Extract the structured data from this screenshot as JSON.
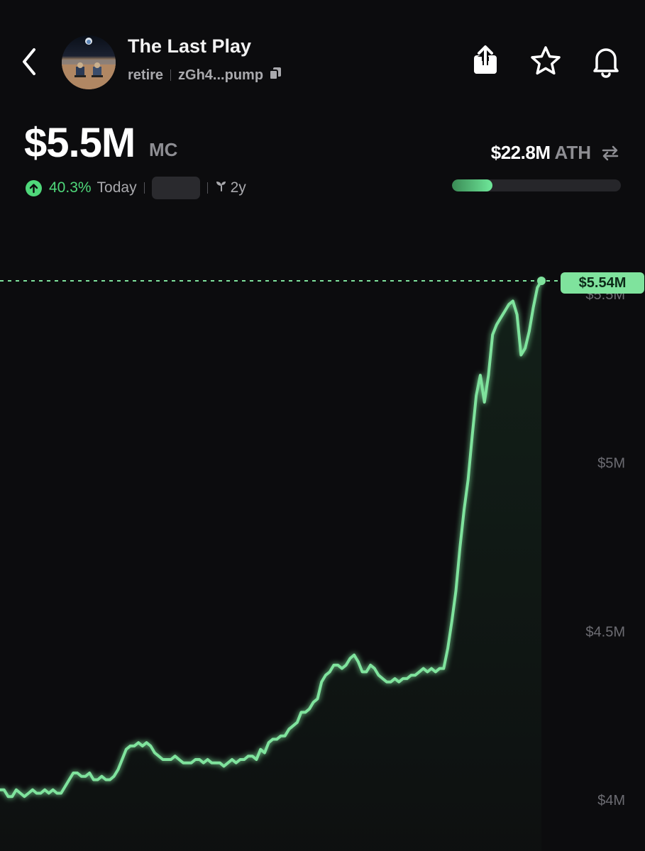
{
  "header": {
    "token_name": "The Last Play",
    "ticker": "retire",
    "address": "zGh4...pump",
    "icons": [
      "back-icon",
      "share-icon",
      "star-icon",
      "bell-icon",
      "copy-icon"
    ]
  },
  "market_cap": {
    "value": "$5.5M",
    "label": "MC",
    "change_pct": "40.3%",
    "change_period": "Today",
    "age": "2y"
  },
  "ath": {
    "value": "$22.8M",
    "label": "ATH",
    "progress_fraction": 0.24
  },
  "colors": {
    "accent": "#4fd87a",
    "line": "#7fe39d",
    "background": "#0c0c0e"
  },
  "chart_data": {
    "type": "line",
    "title": "",
    "xlabel": "",
    "ylabel": "",
    "ylim": [
      3.99,
      5.62
    ],
    "y_ticks": [
      "$5.5M",
      "$5M",
      "$4.5M",
      "$4M"
    ],
    "y_tick_values": [
      5.5,
      5.0,
      4.5,
      4.0
    ],
    "current_value_label": "$5.54M",
    "current_value": 5.54,
    "series": [
      {
        "values": [
          4.03,
          4.03,
          4.01,
          4.01,
          4.03,
          4.02,
          4.01,
          4.02,
          4.03,
          4.02,
          4.02,
          4.03,
          4.02,
          4.03,
          4.02,
          4.02,
          4.04,
          4.06,
          4.08,
          4.08,
          4.07,
          4.07,
          4.08,
          4.06,
          4.06,
          4.07,
          4.06,
          4.06,
          4.07,
          4.09,
          4.12,
          4.15,
          4.16,
          4.16,
          4.17,
          4.16,
          4.17,
          4.16,
          4.14,
          4.13,
          4.12,
          4.12,
          4.12,
          4.13,
          4.12,
          4.11,
          4.11,
          4.11,
          4.12,
          4.12,
          4.11,
          4.12,
          4.11,
          4.11,
          4.11,
          4.1,
          4.11,
          4.12,
          4.11,
          4.12,
          4.12,
          4.13,
          4.13,
          4.12,
          4.15,
          4.14,
          4.17,
          4.18,
          4.18,
          4.19,
          4.19,
          4.21,
          4.22,
          4.23,
          4.26,
          4.26,
          4.27,
          4.29,
          4.3,
          4.35,
          4.37,
          4.38,
          4.4,
          4.4,
          4.39,
          4.4,
          4.42,
          4.43,
          4.41,
          4.38,
          4.38,
          4.4,
          4.39,
          4.37,
          4.36,
          4.35,
          4.35,
          4.36,
          4.35,
          4.36,
          4.36,
          4.37,
          4.37,
          4.38,
          4.39,
          4.38,
          4.39,
          4.38,
          4.39,
          4.39,
          4.45,
          4.53,
          4.62,
          4.75,
          4.86,
          4.95,
          5.08,
          5.2,
          5.26,
          5.18,
          5.26,
          5.38,
          5.41,
          5.43,
          5.45,
          5.47,
          5.48,
          5.44,
          5.32,
          5.34,
          5.39,
          5.46,
          5.52,
          5.54
        ]
      }
    ]
  }
}
